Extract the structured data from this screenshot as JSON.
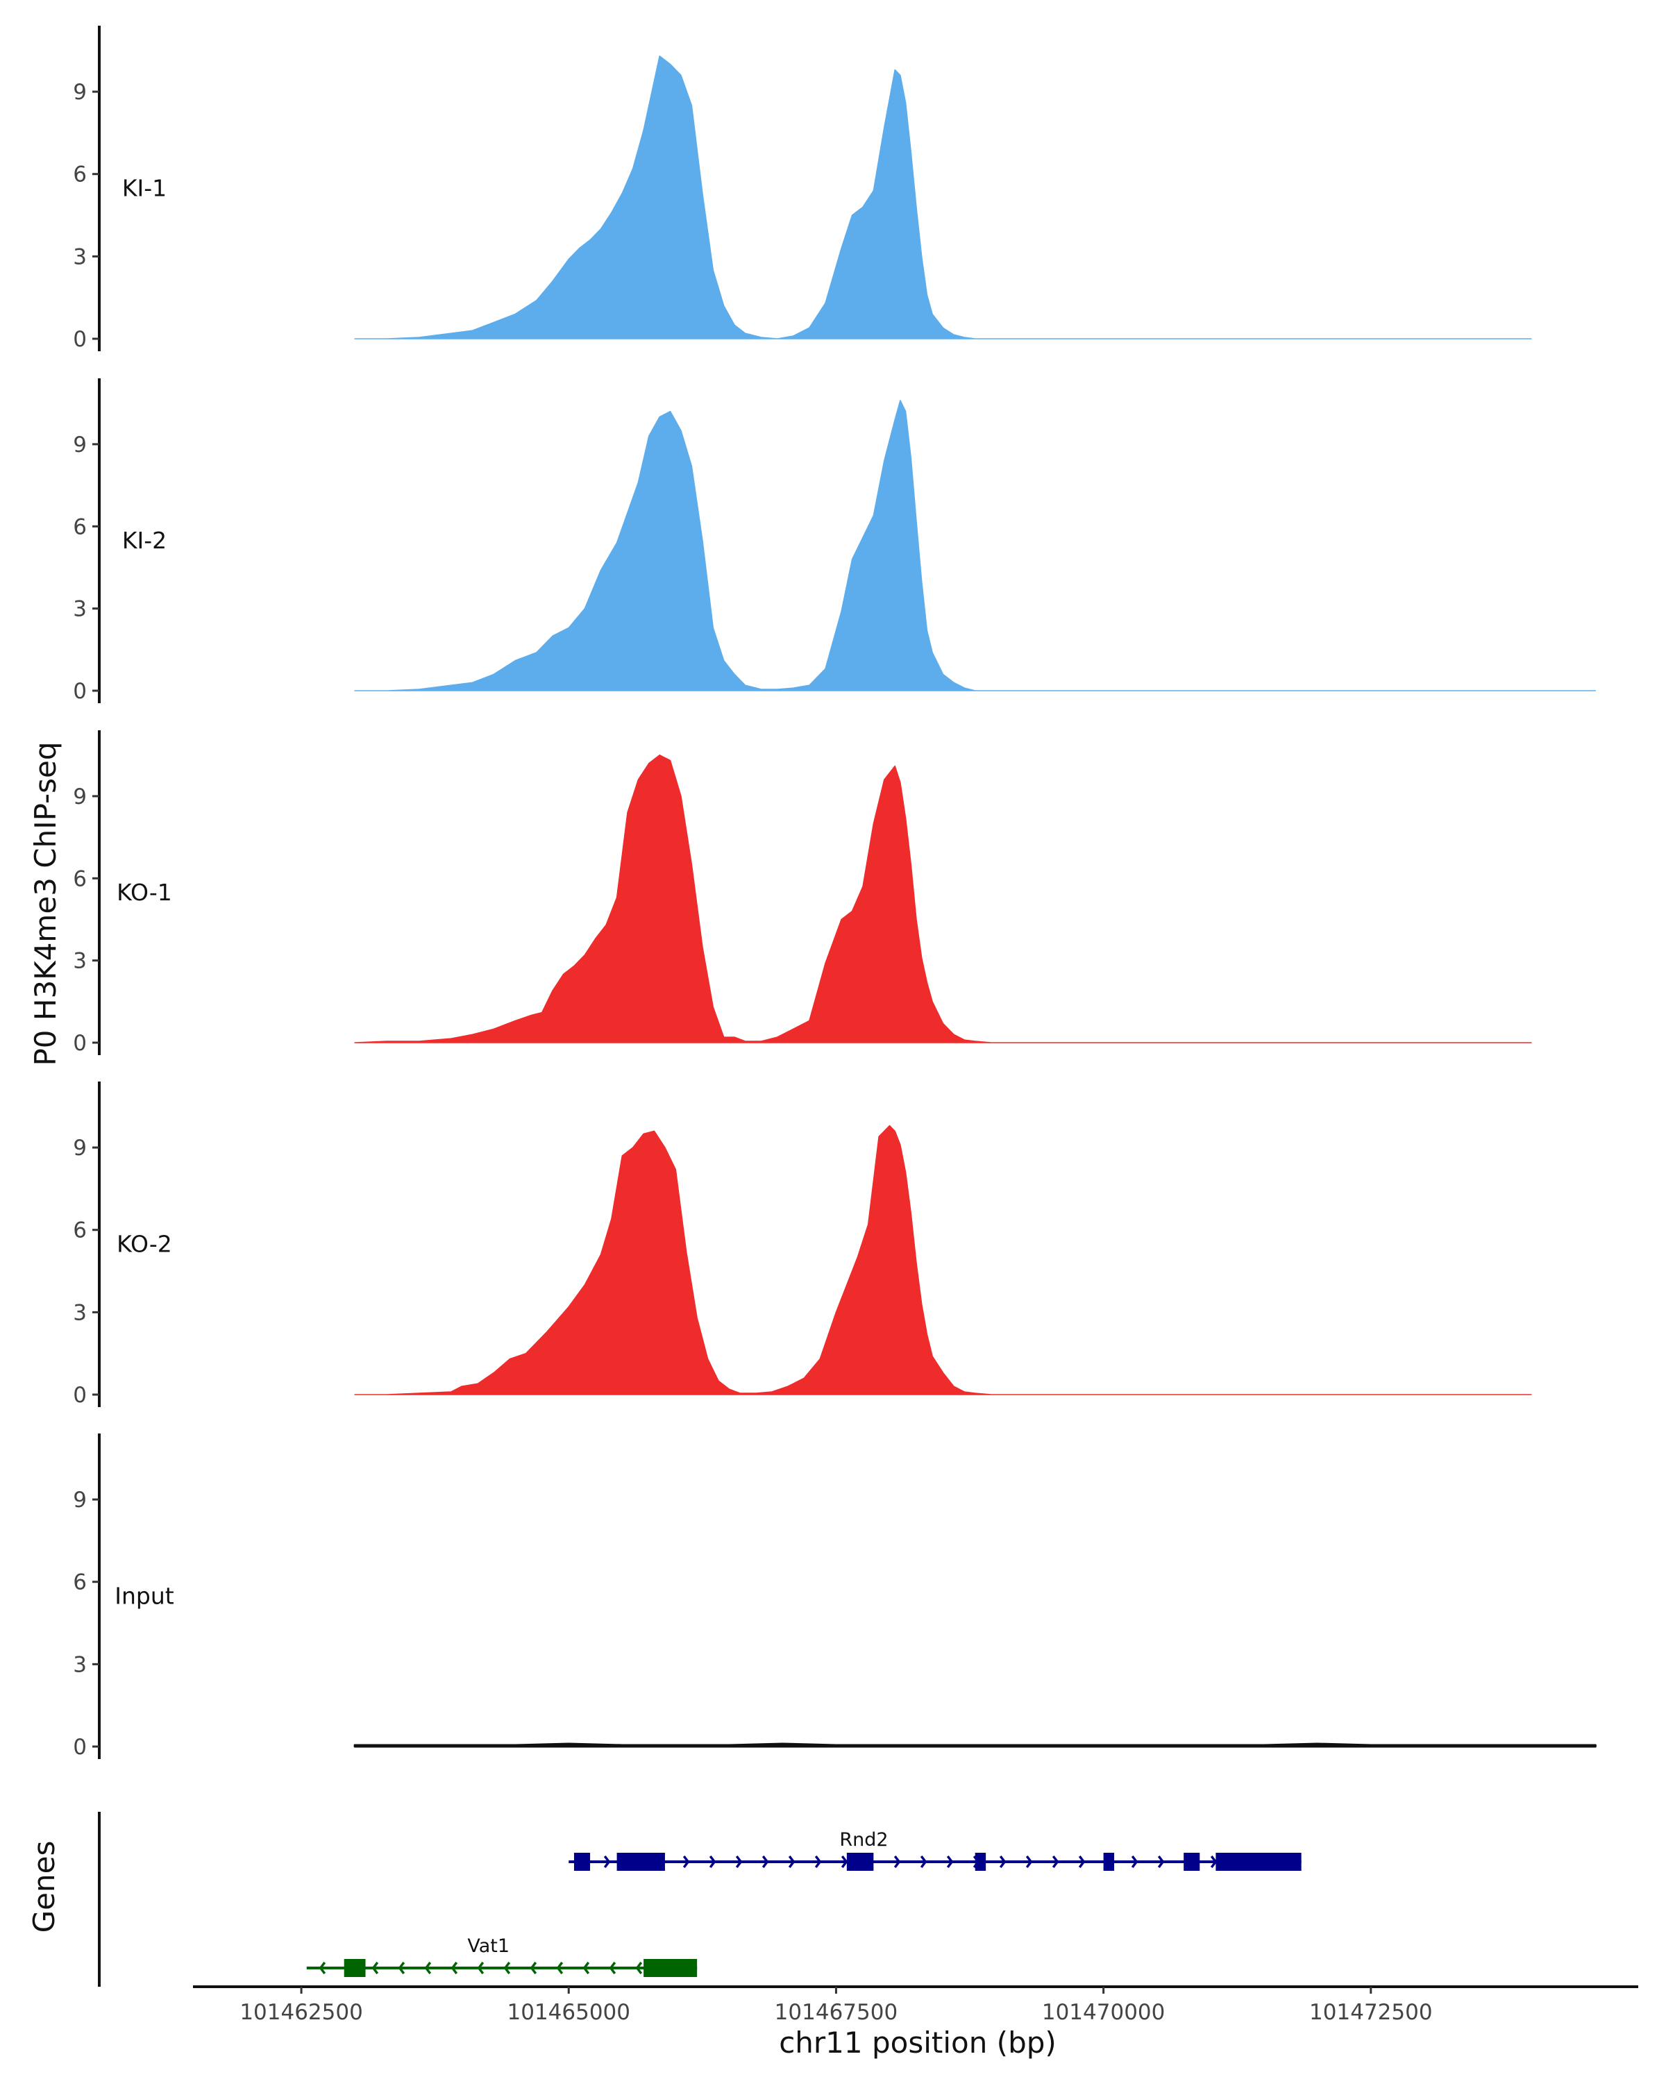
{
  "chart_data": {
    "type": "area",
    "ylabel": "P0 H3K4me3 ChIP-seq",
    "xlabel": "chr11 position (bp)",
    "gene_track_label": "Genes",
    "xlim": [
      101461500,
      101475000
    ],
    "ylim": [
      0,
      11
    ],
    "y_ticks": [
      0,
      3,
      6,
      9
    ],
    "x_ticks": [
      101462500,
      101465000,
      101467500,
      101470000,
      101472500
    ],
    "x_tick_labels": [
      "101462500",
      "101465000",
      "101467500",
      "101470000",
      "101472500"
    ],
    "tracks": [
      {
        "name": "KI-1",
        "color": "#5DADEC",
        "x": [
          101463000,
          101463300,
          101463600,
          101463900,
          101464100,
          101464300,
          101464500,
          101464700,
          101464850,
          101465000,
          101465100,
          101465200,
          101465300,
          101465400,
          101465500,
          101465600,
          101465650,
          101465700,
          101465750,
          101465800,
          101465850,
          101465950,
          101466050,
          101466150,
          101466250,
          101466350,
          101466450,
          101466550,
          101466650,
          101466800,
          101466950,
          101467100,
          101467250,
          101467400,
          101467550,
          101467650,
          101467750,
          101467850,
          101467950,
          101468050,
          101468100,
          101468150,
          101468200,
          101468250,
          101468300,
          101468350,
          101468400,
          101468500,
          101468600,
          101468700,
          101468800,
          101468950,
          101469100,
          101469300,
          101469600,
          101470000,
          101470500,
          101471000,
          101471500,
          101472000,
          101472500,
          101473000,
          101473500,
          101474000
        ],
        "y": [
          0,
          0,
          0.05,
          0.2,
          0.3,
          0.6,
          0.9,
          1.4,
          2.1,
          2.9,
          3.3,
          3.6,
          4.0,
          4.6,
          5.3,
          6.2,
          6.9,
          7.6,
          8.5,
          9.4,
          10.3,
          10.0,
          9.6,
          8.5,
          5.3,
          2.5,
          1.2,
          0.5,
          0.2,
          0.05,
          0,
          0.1,
          0.4,
          1.3,
          3.3,
          4.5,
          4.8,
          5.4,
          7.7,
          9.8,
          9.6,
          8.6,
          6.8,
          4.8,
          3.0,
          1.6,
          0.9,
          0.4,
          0.15,
          0.05,
          0,
          0,
          0,
          0,
          0,
          0,
          0,
          0,
          0,
          0,
          0,
          0,
          0,
          0
        ]
      },
      {
        "name": "KI-2",
        "color": "#5DADEC",
        "x": [
          101463000,
          101463300,
          101463600,
          101463900,
          101464100,
          101464300,
          101464500,
          101464700,
          101464850,
          101465000,
          101465150,
          101465300,
          101465450,
          101465550,
          101465650,
          101465750,
          101465850,
          101465950,
          101466050,
          101466150,
          101466250,
          101466350,
          101466450,
          101466550,
          101466650,
          101466800,
          101466950,
          101467100,
          101467250,
          101467400,
          101467550,
          101467650,
          101467750,
          101467850,
          101467950,
          101468050,
          101468100,
          101468150,
          101468200,
          101468250,
          101468300,
          101468350,
          101468400,
          101468500,
          101468600,
          101468700,
          101468800,
          101468950,
          101469100,
          101469300,
          101469600,
          101470000,
          101470500,
          101471000,
          101471500,
          101472000,
          101472500,
          101473000,
          101473500,
          101474000,
          101474600
        ],
        "y": [
          0,
          0,
          0.05,
          0.2,
          0.3,
          0.6,
          1.1,
          1.4,
          2.0,
          2.3,
          3.0,
          4.4,
          5.4,
          6.5,
          7.6,
          9.3,
          10.0,
          10.2,
          9.5,
          8.2,
          5.5,
          2.3,
          1.1,
          0.6,
          0.2,
          0.05,
          0.05,
          0.1,
          0.2,
          0.8,
          2.9,
          4.8,
          5.6,
          6.4,
          8.4,
          9.9,
          10.6,
          10.2,
          8.5,
          6.2,
          4.0,
          2.2,
          1.4,
          0.6,
          0.3,
          0.1,
          0,
          0,
          0,
          0,
          0,
          0,
          0,
          0,
          0,
          0,
          0,
          0,
          0,
          0,
          0
        ]
      },
      {
        "name": "KO-1",
        "color": "#EE2C2C",
        "x": [
          101463000,
          101463300,
          101463600,
          101463900,
          101464100,
          101464300,
          101464500,
          101464650,
          101464750,
          101464850,
          101464950,
          101465050,
          101465150,
          101465250,
          101465350,
          101465450,
          101465550,
          101465650,
          101465750,
          101465850,
          101465950,
          101466050,
          101466150,
          101466250,
          101466350,
          101466450,
          101466550,
          101466650,
          101466800,
          101466950,
          101467100,
          101467250,
          101467400,
          101467550,
          101467650,
          101467750,
          101467850,
          101467950,
          101468050,
          101468100,
          101468150,
          101468200,
          101468250,
          101468300,
          101468350,
          101468400,
          101468500,
          101468600,
          101468700,
          101468800,
          101468950,
          101469100,
          101469300,
          101469600,
          101470000,
          101470500,
          101471000,
          101471500,
          101472000,
          101472500,
          101473000,
          101473500,
          101474000
        ],
        "y": [
          0,
          0.05,
          0.05,
          0.15,
          0.3,
          0.5,
          0.8,
          1.0,
          1.1,
          1.9,
          2.5,
          2.8,
          3.2,
          3.8,
          4.3,
          5.3,
          8.4,
          9.6,
          10.2,
          10.5,
          10.3,
          9.0,
          6.5,
          3.5,
          1.3,
          0.2,
          0.2,
          0.05,
          0.05,
          0.2,
          0.5,
          0.8,
          2.9,
          4.5,
          4.8,
          5.7,
          8.0,
          9.6,
          10.1,
          9.5,
          8.2,
          6.5,
          4.5,
          3.1,
          2.2,
          1.5,
          0.7,
          0.3,
          0.1,
          0.05,
          0,
          0,
          0,
          0,
          0,
          0,
          0,
          0,
          0,
          0,
          0,
          0,
          0
        ]
      },
      {
        "name": "KO-2",
        "color": "#EE2C2C",
        "x": [
          101463000,
          101463300,
          101463600,
          101463900,
          101464000,
          101464150,
          101464300,
          101464450,
          101464600,
          101464800,
          101465000,
          101465150,
          101465300,
          101465400,
          101465500,
          101465600,
          101465700,
          101465800,
          101465900,
          101466000,
          101466100,
          101466200,
          101466300,
          101466400,
          101466500,
          101466600,
          101466750,
          101466900,
          101467050,
          101467200,
          101467350,
          101467500,
          101467600,
          101467700,
          101467800,
          101467900,
          101468000,
          101468050,
          101468100,
          101468150,
          101468200,
          101468250,
          101468300,
          101468350,
          101468400,
          101468500,
          101468600,
          101468700,
          101468800,
          101468950,
          101469100,
          101469300,
          101469600,
          101470000,
          101470500,
          101471000,
          101471500,
          101472000,
          101472500,
          101473000,
          101473500,
          101474000
        ],
        "y": [
          0,
          0,
          0.05,
          0.1,
          0.3,
          0.4,
          0.8,
          1.3,
          1.5,
          2.3,
          3.2,
          4.0,
          5.1,
          6.4,
          8.7,
          9.0,
          9.5,
          9.6,
          9.0,
          8.2,
          5.2,
          2.8,
          1.3,
          0.5,
          0.2,
          0.05,
          0.05,
          0.1,
          0.3,
          0.6,
          1.3,
          3.0,
          4.0,
          5.0,
          6.2,
          9.4,
          9.8,
          9.6,
          9.1,
          8.1,
          6.6,
          4.8,
          3.3,
          2.2,
          1.4,
          0.8,
          0.3,
          0.1,
          0.05,
          0,
          0,
          0,
          0,
          0,
          0,
          0,
          0,
          0,
          0,
          0,
          0,
          0
        ]
      },
      {
        "name": "Input",
        "color": "#111111",
        "x": [
          101463000,
          101463500,
          101464000,
          101464500,
          101465000,
          101465500,
          101466000,
          101466500,
          101467000,
          101467500,
          101468000,
          101468500,
          101469000,
          101469500,
          101470000,
          101470500,
          101471000,
          101471500,
          101472000,
          101472500,
          101473000,
          101473500,
          101474000,
          101474600
        ],
        "y": [
          0.05,
          0.05,
          0.05,
          0.05,
          0.1,
          0.05,
          0.05,
          0.05,
          0.1,
          0.05,
          0.05,
          0.05,
          0.05,
          0.05,
          0.05,
          0.05,
          0.05,
          0.05,
          0.1,
          0.05,
          0.05,
          0.05,
          0.05,
          0.05
        ]
      }
    ],
    "genes": [
      {
        "name": "Rnd2",
        "strand": "+",
        "color": "#00008B",
        "start": 101465000,
        "end": 101471850,
        "exons": [
          [
            101465050,
            101465200
          ],
          [
            101465450,
            101465900
          ],
          [
            101467600,
            101467850
          ],
          [
            101468800,
            101468900
          ],
          [
            101470000,
            101470100
          ],
          [
            101470750,
            101470900
          ],
          [
            101471050,
            101471850
          ]
        ]
      },
      {
        "name": "Vat1",
        "strand": "-",
        "color": "#006400",
        "start": 101462550,
        "end": 101466200,
        "exons": [
          [
            101462900,
            101463100
          ],
          [
            101465700,
            101466200
          ]
        ]
      }
    ]
  }
}
